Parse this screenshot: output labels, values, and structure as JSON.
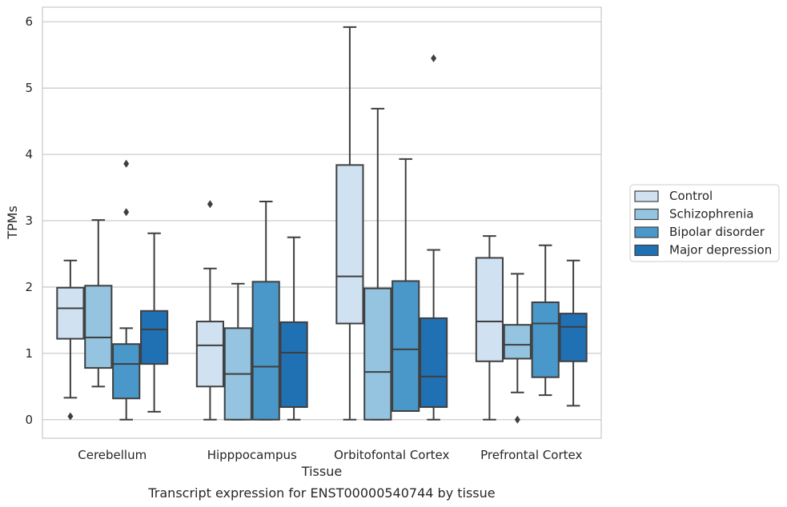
{
  "chart_data": {
    "type": "box",
    "title": "",
    "caption": "Transcript expression for ENST00000540744 by tissue",
    "xlabel": "Tissue",
    "ylabel": "TPMs",
    "ylim": [
      -0.28,
      6.22
    ],
    "yticks": [
      0,
      1,
      2,
      3,
      4,
      5,
      6
    ],
    "grid": true,
    "legend_position": "right",
    "categories": [
      "Cerebellum",
      "Hipppocampus",
      "Orbitofontal Cortex",
      "Prefrontal Cortex"
    ],
    "series": [
      {
        "name": "Control",
        "color": "#d0e1f2",
        "boxes": [
          {
            "whisker_low": 0.33,
            "q1": 1.22,
            "median": 1.68,
            "q3": 1.99,
            "whisker_high": 2.4,
            "outliers": [
              0.05
            ]
          },
          {
            "whisker_low": 0.0,
            "q1": 0.5,
            "median": 1.12,
            "q3": 1.48,
            "whisker_high": 2.28,
            "outliers": [
              3.25
            ]
          },
          {
            "whisker_low": 0.0,
            "q1": 1.45,
            "median": 2.16,
            "q3": 3.84,
            "whisker_high": 5.92,
            "outliers": []
          },
          {
            "whisker_low": 0.0,
            "q1": 0.88,
            "median": 1.48,
            "q3": 2.44,
            "whisker_high": 2.77,
            "outliers": []
          }
        ]
      },
      {
        "name": "Schizophrenia",
        "color": "#94c4df",
        "boxes": [
          {
            "whisker_low": 0.5,
            "q1": 0.78,
            "median": 1.24,
            "q3": 2.02,
            "whisker_high": 3.01,
            "outliers": []
          },
          {
            "whisker_low": 0.0,
            "q1": 0.0,
            "median": 0.69,
            "q3": 1.38,
            "whisker_high": 2.05,
            "outliers": []
          },
          {
            "whisker_low": 0.0,
            "q1": 0.0,
            "median": 0.72,
            "q3": 1.98,
            "whisker_high": 4.69,
            "outliers": []
          },
          {
            "whisker_low": 0.41,
            "q1": 0.92,
            "median": 1.13,
            "q3": 1.43,
            "whisker_high": 2.2,
            "outliers": [
              0.0
            ]
          }
        ]
      },
      {
        "name": "Bipolar disorder",
        "color": "#4a98c9",
        "boxes": [
          {
            "whisker_low": 0.0,
            "q1": 0.32,
            "median": 0.84,
            "q3": 1.14,
            "whisker_high": 1.38,
            "outliers": [
              3.13,
              3.86
            ]
          },
          {
            "whisker_low": 0.0,
            "q1": 0.0,
            "median": 0.8,
            "q3": 2.08,
            "whisker_high": 3.29,
            "outliers": []
          },
          {
            "whisker_low": 0.13,
            "q1": 0.13,
            "median": 1.06,
            "q3": 2.09,
            "whisker_high": 3.93,
            "outliers": []
          },
          {
            "whisker_low": 0.37,
            "q1": 0.64,
            "median": 1.45,
            "q3": 1.77,
            "whisker_high": 2.63,
            "outliers": []
          }
        ]
      },
      {
        "name": "Major depression",
        "color": "#2070b4",
        "boxes": [
          {
            "whisker_low": 0.12,
            "q1": 0.84,
            "median": 1.36,
            "q3": 1.64,
            "whisker_high": 2.81,
            "outliers": []
          },
          {
            "whisker_low": 0.0,
            "q1": 0.19,
            "median": 1.01,
            "q3": 1.47,
            "whisker_high": 2.75,
            "outliers": []
          },
          {
            "whisker_low": 0.0,
            "q1": 0.19,
            "median": 0.65,
            "q3": 1.53,
            "whisker_high": 2.56,
            "outliers": [
              5.45
            ]
          },
          {
            "whisker_low": 0.21,
            "q1": 0.88,
            "median": 1.4,
            "q3": 1.6,
            "whisker_high": 2.4,
            "outliers": []
          }
        ]
      }
    ]
  }
}
